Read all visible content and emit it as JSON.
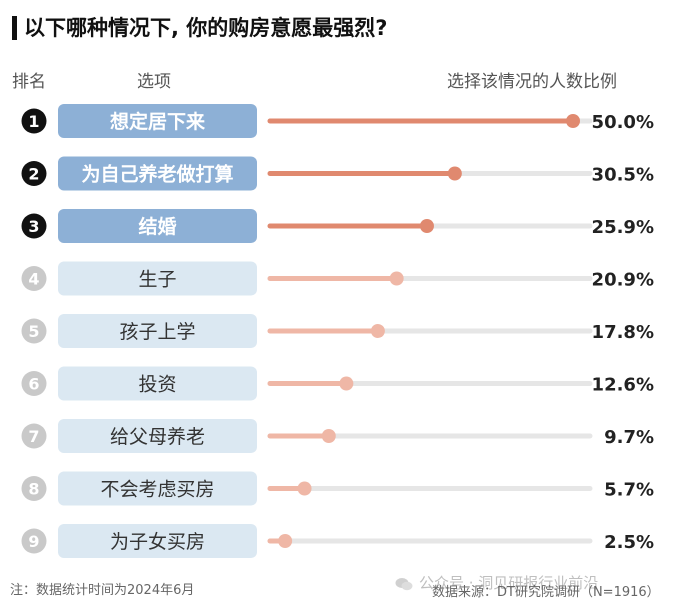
{
  "title": "以下哪种情况下, 你的购房意愿最强烈?",
  "headers": {
    "rank": "排名",
    "option": "选项",
    "share": "选择该情况的人数比例"
  },
  "footnote": "注：数据统计时间为2024年6月",
  "source": "数据来源：DT研究院调研（N=1916）",
  "watermark": "公众号 · 洞见研报行业前沿",
  "colors": {
    "top_box": "#8db0d6",
    "other_box": "#dbe8f2",
    "top_bar": "#e0896f",
    "other_bar": "#efb7a6",
    "track": "#e6e6e6",
    "top_badge": "#111111",
    "other_badge": "#c9c9c9"
  },
  "chart_data": {
    "type": "bar",
    "orientation": "horizontal",
    "value_unit": "%",
    "xlim": [
      0,
      60
    ],
    "categories": [
      "想定居下来",
      "为自己养老做打算",
      "结婚",
      "生子",
      "孩子上学",
      "投资",
      "给父母养老",
      "不会考虑买房",
      "为子女买房"
    ],
    "ranks": [
      "1",
      "2",
      "3",
      "4",
      "5",
      "6",
      "7",
      "8",
      "9"
    ],
    "values": [
      50.0,
      30.5,
      25.9,
      20.9,
      17.8,
      12.6,
      9.7,
      5.7,
      2.5
    ],
    "labels": [
      "50.0%",
      "30.5%",
      "25.9%",
      "20.9%",
      "17.8%",
      "12.6%",
      "9.7%",
      "5.7%",
      "2.5%"
    ],
    "highlight_top": 3
  }
}
